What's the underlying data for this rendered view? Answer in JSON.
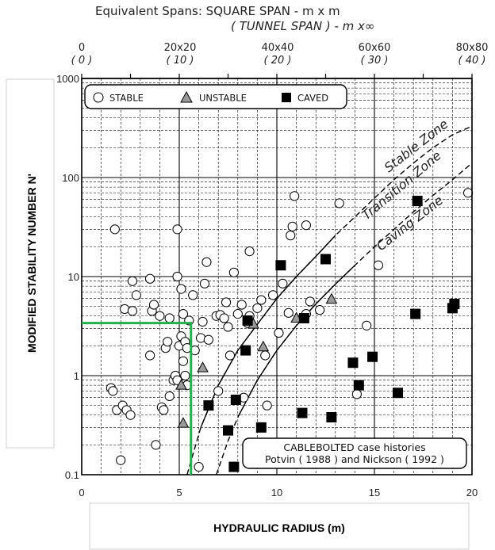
{
  "top_axis": {
    "title_line1": "Equivalent Spans:  SQUARE SPAN    -    m x m",
    "title_line2": "( TUNNEL  SPAN )  -    m x∞",
    "ticks": [
      "0",
      "20x20",
      "40x40",
      "60x60",
      "80x80"
    ],
    "ticks_italic": [
      "( 0 )",
      "( 10 )",
      "( 20 )",
      "( 30 )",
      "( 40 )"
    ]
  },
  "legend": {
    "stable": "STABLE",
    "unstable": "UNSTABLE",
    "caved": "CAVED"
  },
  "zones": {
    "stable": "Stable Zone",
    "transition": "Transition Zone",
    "caving": "Caving Zone"
  },
  "note": {
    "line1": "CABLEBOLTED case histories",
    "line2": "Potvin ( 1988 ) and Nickson ( 1992 )"
  },
  "colors": {
    "highlight": "#22b14c",
    "grid": "#000000",
    "unstable_fill": "#9a9a9a"
  },
  "chart_data": {
    "type": "scatter",
    "xlabel": "HYDRAULIC RADIUS (m)",
    "ylabel": "MODIFIED STABILITY NUMBER N'",
    "xlim": [
      0,
      20
    ],
    "ylim": [
      0.1,
      1000
    ],
    "yscale": "log",
    "x_ticks": [
      "0",
      "5",
      "10",
      "15",
      "20"
    ],
    "y_ticks": [
      "0.1",
      "1",
      "10",
      "100",
      "1000"
    ],
    "grid": true,
    "legend_position": "top-left",
    "series": [
      {
        "name": "STABLE",
        "marker": "open-circle",
        "points": [
          [
            1.7,
            30
          ],
          [
            1.5,
            0.75
          ],
          [
            1.6,
            0.7
          ],
          [
            1.8,
            0.45
          ],
          [
            2.0,
            0.14
          ],
          [
            2.1,
            0.5
          ],
          [
            2.3,
            0.45
          ],
          [
            2.5,
            0.4
          ],
          [
            2.2,
            4.7
          ],
          [
            2.6,
            4.5
          ],
          [
            2.6,
            9
          ],
          [
            2.8,
            6.5
          ],
          [
            3.5,
            9.5
          ],
          [
            3.5,
            1.6
          ],
          [
            3.6,
            4.5
          ],
          [
            3.7,
            5.2
          ],
          [
            3.8,
            0.2
          ],
          [
            4.1,
            0.48
          ],
          [
            4.2,
            0.45
          ],
          [
            4.3,
            1.9
          ],
          [
            4.4,
            2.2
          ],
          [
            4.5,
            0.62
          ],
          [
            4.7,
            0.9
          ],
          [
            4.8,
            1.0
          ],
          [
            4.9,
            0.9
          ],
          [
            5.0,
            2.0
          ],
          [
            5.1,
            2.5
          ],
          [
            5.3,
            2.2
          ],
          [
            5.4,
            1.9
          ],
          [
            5.2,
            1.4
          ],
          [
            5.3,
            1.0
          ],
          [
            5.4,
            0.8
          ],
          [
            4.9,
            30
          ],
          [
            4.9,
            10
          ],
          [
            5.1,
            7.5
          ],
          [
            5.2,
            4.2
          ],
          [
            5.5,
            3.6
          ],
          [
            4.0,
            4.0
          ],
          [
            4.5,
            3.8
          ],
          [
            5.7,
            6.5
          ],
          [
            5.8,
            1.8
          ],
          [
            6.1,
            2.4
          ],
          [
            6.2,
            3.5
          ],
          [
            6.5,
            2.3
          ],
          [
            6.0,
            0.12
          ],
          [
            6.3,
            8.5
          ],
          [
            6.4,
            14
          ],
          [
            6.9,
            4.0
          ],
          [
            7.1,
            4.1
          ],
          [
            7.0,
            0.7
          ],
          [
            7.3,
            3.8
          ],
          [
            7.4,
            5.5
          ],
          [
            7.5,
            3.1
          ],
          [
            7.8,
            11
          ],
          [
            7.6,
            1.6
          ],
          [
            8.0,
            4.2
          ],
          [
            8.2,
            5.2
          ],
          [
            8.5,
            3.4
          ],
          [
            8.3,
            0.6
          ],
          [
            8.6,
            18
          ],
          [
            8.6,
            4.0
          ],
          [
            9.0,
            4.8
          ],
          [
            9.2,
            5.8
          ],
          [
            9.4,
            1.6
          ],
          [
            9.5,
            0.5
          ],
          [
            9.8,
            6.5
          ],
          [
            10.1,
            2.7
          ],
          [
            10.3,
            8.5
          ],
          [
            10.6,
            4.3
          ],
          [
            10.7,
            26
          ],
          [
            10.8,
            32
          ],
          [
            10.9,
            65
          ],
          [
            11.3,
            3.8
          ],
          [
            11.5,
            4.2
          ],
          [
            11.5,
            33
          ],
          [
            11.7,
            5.6
          ],
          [
            12.2,
            4.6
          ],
          [
            13.2,
            55
          ],
          [
            14.1,
            0.65
          ],
          [
            14.6,
            3.2
          ],
          [
            15.2,
            13
          ],
          [
            19.8,
            70
          ]
        ]
      },
      {
        "name": "UNSTABLE",
        "marker": "filled-triangle",
        "points": [
          [
            5.1,
            0.8
          ],
          [
            5.2,
            0.33
          ],
          [
            6.2,
            1.2
          ],
          [
            8.8,
            3.3
          ],
          [
            9.3,
            1.95
          ],
          [
            11.0,
            3.8
          ],
          [
            12.8,
            5.9
          ]
        ]
      },
      {
        "name": "CAVED",
        "marker": "filled-square",
        "points": [
          [
            6.5,
            0.5
          ],
          [
            7.5,
            0.28
          ],
          [
            7.8,
            0.12
          ],
          [
            7.9,
            0.57
          ],
          [
            8.4,
            1.8
          ],
          [
            8.5,
            3.6
          ],
          [
            9.2,
            0.3
          ],
          [
            10.2,
            13
          ],
          [
            11.3,
            0.42
          ],
          [
            11.4,
            3.8
          ],
          [
            12.5,
            15
          ],
          [
            12.8,
            0.38
          ],
          [
            13.9,
            1.35
          ],
          [
            14.2,
            0.8
          ],
          [
            14.9,
            1.55
          ],
          [
            16.2,
            0.67
          ],
          [
            17.1,
            4.2
          ],
          [
            17.2,
            58
          ],
          [
            19.0,
            4.8
          ],
          [
            19.1,
            5.3
          ]
        ]
      }
    ],
    "zone_boundaries": {
      "stable_transition": [
        [
          5.4,
          0.1
        ],
        [
          6.1,
          0.3
        ],
        [
          7.0,
          0.8
        ],
        [
          8.0,
          1.8
        ],
        [
          9.0,
          3.3
        ],
        [
          10.0,
          6
        ],
        [
          11.0,
          10
        ],
        [
          12.0,
          16
        ],
        [
          13.0,
          26
        ],
        [
          14.0,
          40
        ],
        [
          15.0,
          62
        ],
        [
          16.0,
          95
        ],
        [
          17.0,
          140
        ],
        [
          18.0,
          200
        ],
        [
          19.0,
          270
        ],
        [
          20.0,
          330
        ]
      ],
      "transition_caving": [
        [
          6.9,
          0.1
        ],
        [
          7.5,
          0.22
        ],
        [
          8.0,
          0.38
        ],
        [
          9.0,
          0.9
        ],
        [
          10.0,
          1.8
        ],
        [
          11.0,
          3.2
        ],
        [
          12.0,
          5.3
        ],
        [
          13.0,
          8.4
        ],
        [
          14.0,
          13
        ],
        [
          15.0,
          20
        ],
        [
          16.0,
          30
        ],
        [
          17.0,
          45
        ],
        [
          18.0,
          66
        ],
        [
          19.0,
          95
        ],
        [
          20.0,
          140
        ]
      ]
    },
    "highlight_region": {
      "x_max": 5.6,
      "y_max": 3.4
    }
  }
}
